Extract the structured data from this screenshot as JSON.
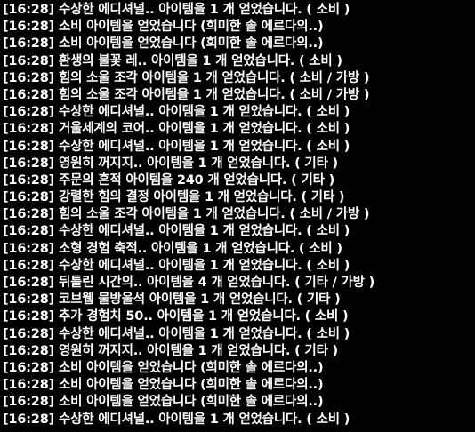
{
  "chat": {
    "lines": [
      {
        "time": "[16:28]",
        "text": "수상한 에디셔널.. 아이템을 1 개 얻었습니다. ( 소비 )"
      },
      {
        "time": "[16:28]",
        "text": "소비 아이템을 얻었습니다 (희미한 솔 에르다의..)"
      },
      {
        "time": "[16:28]",
        "text": "소비 아이템을 얻었습니다 (희미한 솔 에르다의..)"
      },
      {
        "time": "[16:28]",
        "text": "환생의 불꽃 레.. 아이템을 1 개 얻었습니다. ( 소비 )"
      },
      {
        "time": "[16:28]",
        "text": "힘의 소울 조각 아이템을 1 개 얻었습니다. ( 소비 / 가방 )"
      },
      {
        "time": "[16:28]",
        "text": "힘의 소울 조각 아이템을 1 개 얻었습니다. ( 소비 / 가방 )"
      },
      {
        "time": "[16:28]",
        "text": "수상한 에디셔널.. 아이템을 1 개 얻었습니다. ( 소비 )"
      },
      {
        "time": "[16:28]",
        "text": "거울세계의 코어.. 아이템을 1 개 얻었습니다. ( 소비 )"
      },
      {
        "time": "[16:28]",
        "text": "수상한 에디셔널.. 아이템을 1 개 얻었습니다. ( 소비 )"
      },
      {
        "time": "[16:28]",
        "text": "영원히 꺼지지.. 아이템을 1 개 얻었습니다. ( 기타 )"
      },
      {
        "time": "[16:28]",
        "text": "주문의 흔적 아이템을 240 개 얻었습니다. ( 기타 )"
      },
      {
        "time": "[16:28]",
        "text": "강렬한 힘의 결정 아이템을 1 개 얻었습니다. ( 기타 )"
      },
      {
        "time": "[16:28]",
        "text": "힘의 소울 조각 아이템을 1 개 얻었습니다. ( 소비 / 가방 )"
      },
      {
        "time": "[16:28]",
        "text": "수상한 에디셔널.. 아이템을 1 개 얻었습니다. ( 소비 )"
      },
      {
        "time": "[16:28]",
        "text": "소형 경험 축적.. 아이템을 1 개 얻었습니다. ( 소비 )"
      },
      {
        "time": "[16:28]",
        "text": "수상한 에디셔널.. 아이템을 1 개 얻었습니다. ( 소비 )"
      },
      {
        "time": "[16:28]",
        "text": "뒤틀린 시간의.. 아이템을 4 개 얻었습니다. ( 기타 / 가방 )"
      },
      {
        "time": "[16:28]",
        "text": "코브웹 물방울석 아이템을 1 개 얻었습니다. ( 기타 )"
      },
      {
        "time": "[16:28]",
        "text": "추가 경험치 50.. 아이템을 1 개 얻었습니다. ( 소비 )"
      },
      {
        "time": "[16:28]",
        "text": "수상한 에디셔널.. 아이템을 1 개 얻었습니다. ( 소비 )"
      },
      {
        "time": "[16:28]",
        "text": "영원히 꺼지지.. 아이템을 1 개 얻었습니다. ( 기타 )"
      },
      {
        "time": "[16:28]",
        "text": "소비 아이템을 얻었습니다 (희미한 솔 에르다의..)"
      },
      {
        "time": "[16:28]",
        "text": "소비 아이템을 얻었습니다 (희미한 솔 에르다의..)"
      },
      {
        "time": "[16:28]",
        "text": "소비 아이템을 얻었습니다 (희미한 솔 에르다의..)"
      },
      {
        "time": "[16:28]",
        "text": "수상한 에디셔널.. 아이템을 1 개 얻었습니다. ( 소비 )"
      }
    ]
  }
}
